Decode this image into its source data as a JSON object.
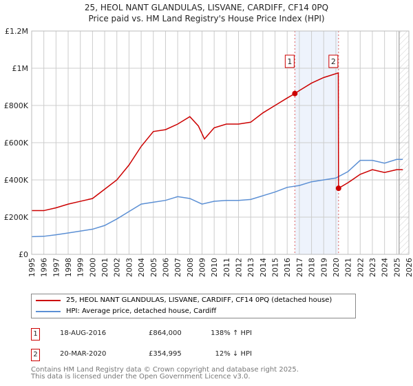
{
  "chart_data": {
    "type": "line",
    "title": "25, HEOL NANT GLANDULAS, LISVANE, CARDIFF, CF14 0PQ",
    "subtitle": "Price paid vs. HM Land Registry's House Price Index (HPI)",
    "xlim": [
      1995,
      2026
    ],
    "ylim": [
      0,
      1200000
    ],
    "y_ticks": [
      {
        "v": 0,
        "l": "£0"
      },
      {
        "v": 200000,
        "l": "£200K"
      },
      {
        "v": 400000,
        "l": "£400K"
      },
      {
        "v": 600000,
        "l": "£600K"
      },
      {
        "v": 800000,
        "l": "£800K"
      },
      {
        "v": 1000000,
        "l": "£1M"
      },
      {
        "v": 1200000,
        "l": "£1.2M"
      }
    ],
    "x_ticks": [
      "1995",
      "1996",
      "1997",
      "1998",
      "1999",
      "2000",
      "2001",
      "2002",
      "2003",
      "2004",
      "2005",
      "2006",
      "2007",
      "2008",
      "2009",
      "2010",
      "2011",
      "2012",
      "2013",
      "2014",
      "2015",
      "2016",
      "2017",
      "2018",
      "2019",
      "2020",
      "2021",
      "2022",
      "2023",
      "2024",
      "2025",
      "2026"
    ],
    "grid": true,
    "series": [
      {
        "name": "25, HEOL NANT GLANDULAS, LISVANE, CARDIFF, CF14 0PQ (detached house)",
        "color": "#cc0000",
        "x": [
          1995,
          1996,
          1997,
          1998,
          1999,
          2000,
          2001,
          2002,
          2003,
          2004,
          2005,
          2006,
          2007,
          2008,
          2008.7,
          2009.2,
          2010,
          2011,
          2012,
          2013,
          2014,
          2015,
          2016,
          2016.63,
          2017,
          2018,
          2019,
          2020.2,
          2020.22,
          2021,
          2022,
          2023,
          2024,
          2025,
          2025.5
        ],
        "y": [
          235000,
          235000,
          250000,
          270000,
          285000,
          300000,
          350000,
          400000,
          480000,
          580000,
          660000,
          670000,
          700000,
          740000,
          690000,
          620000,
          680000,
          700000,
          700000,
          710000,
          760000,
          800000,
          840000,
          864000,
          880000,
          920000,
          950000,
          975000,
          354995,
          385000,
          430000,
          455000,
          440000,
          455000,
          455000
        ]
      },
      {
        "name": "HPI: Average price, detached house, Cardiff",
        "color": "#5b8fd4",
        "x": [
          1995,
          1996,
          1997,
          1998,
          1999,
          2000,
          2001,
          2002,
          2003,
          2004,
          2005,
          2006,
          2007,
          2008,
          2009,
          2010,
          2011,
          2012,
          2013,
          2014,
          2015,
          2016,
          2017,
          2018,
          2019,
          2020,
          2021,
          2022,
          2023,
          2024,
          2025,
          2025.5
        ],
        "y": [
          95000,
          97000,
          105000,
          115000,
          125000,
          135000,
          155000,
          190000,
          230000,
          270000,
          280000,
          290000,
          310000,
          300000,
          270000,
          285000,
          290000,
          290000,
          295000,
          315000,
          335000,
          360000,
          370000,
          390000,
          400000,
          410000,
          445000,
          505000,
          505000,
          490000,
          510000,
          510000
        ]
      }
    ],
    "annotations": [
      {
        "label": "1",
        "x": 2016.63,
        "y": 864000
      },
      {
        "label": "2",
        "x": 2020.22,
        "y": 354995
      }
    ],
    "shaded_range": [
      2016.63,
      2020.22
    ],
    "forecast_start": 2025.2,
    "legend_placement": "below"
  },
  "transactions": [
    {
      "n": "1",
      "date": "18-AUG-2016",
      "price": "£864,000",
      "hpi": "138% ↑ HPI"
    },
    {
      "n": "2",
      "date": "20-MAR-2020",
      "price": "£354,995",
      "hpi": "12% ↓ HPI"
    }
  ],
  "footer": [
    "Contains HM Land Registry data © Crown copyright and database right 2025.",
    "This data is licensed under the Open Government Licence v3.0."
  ]
}
